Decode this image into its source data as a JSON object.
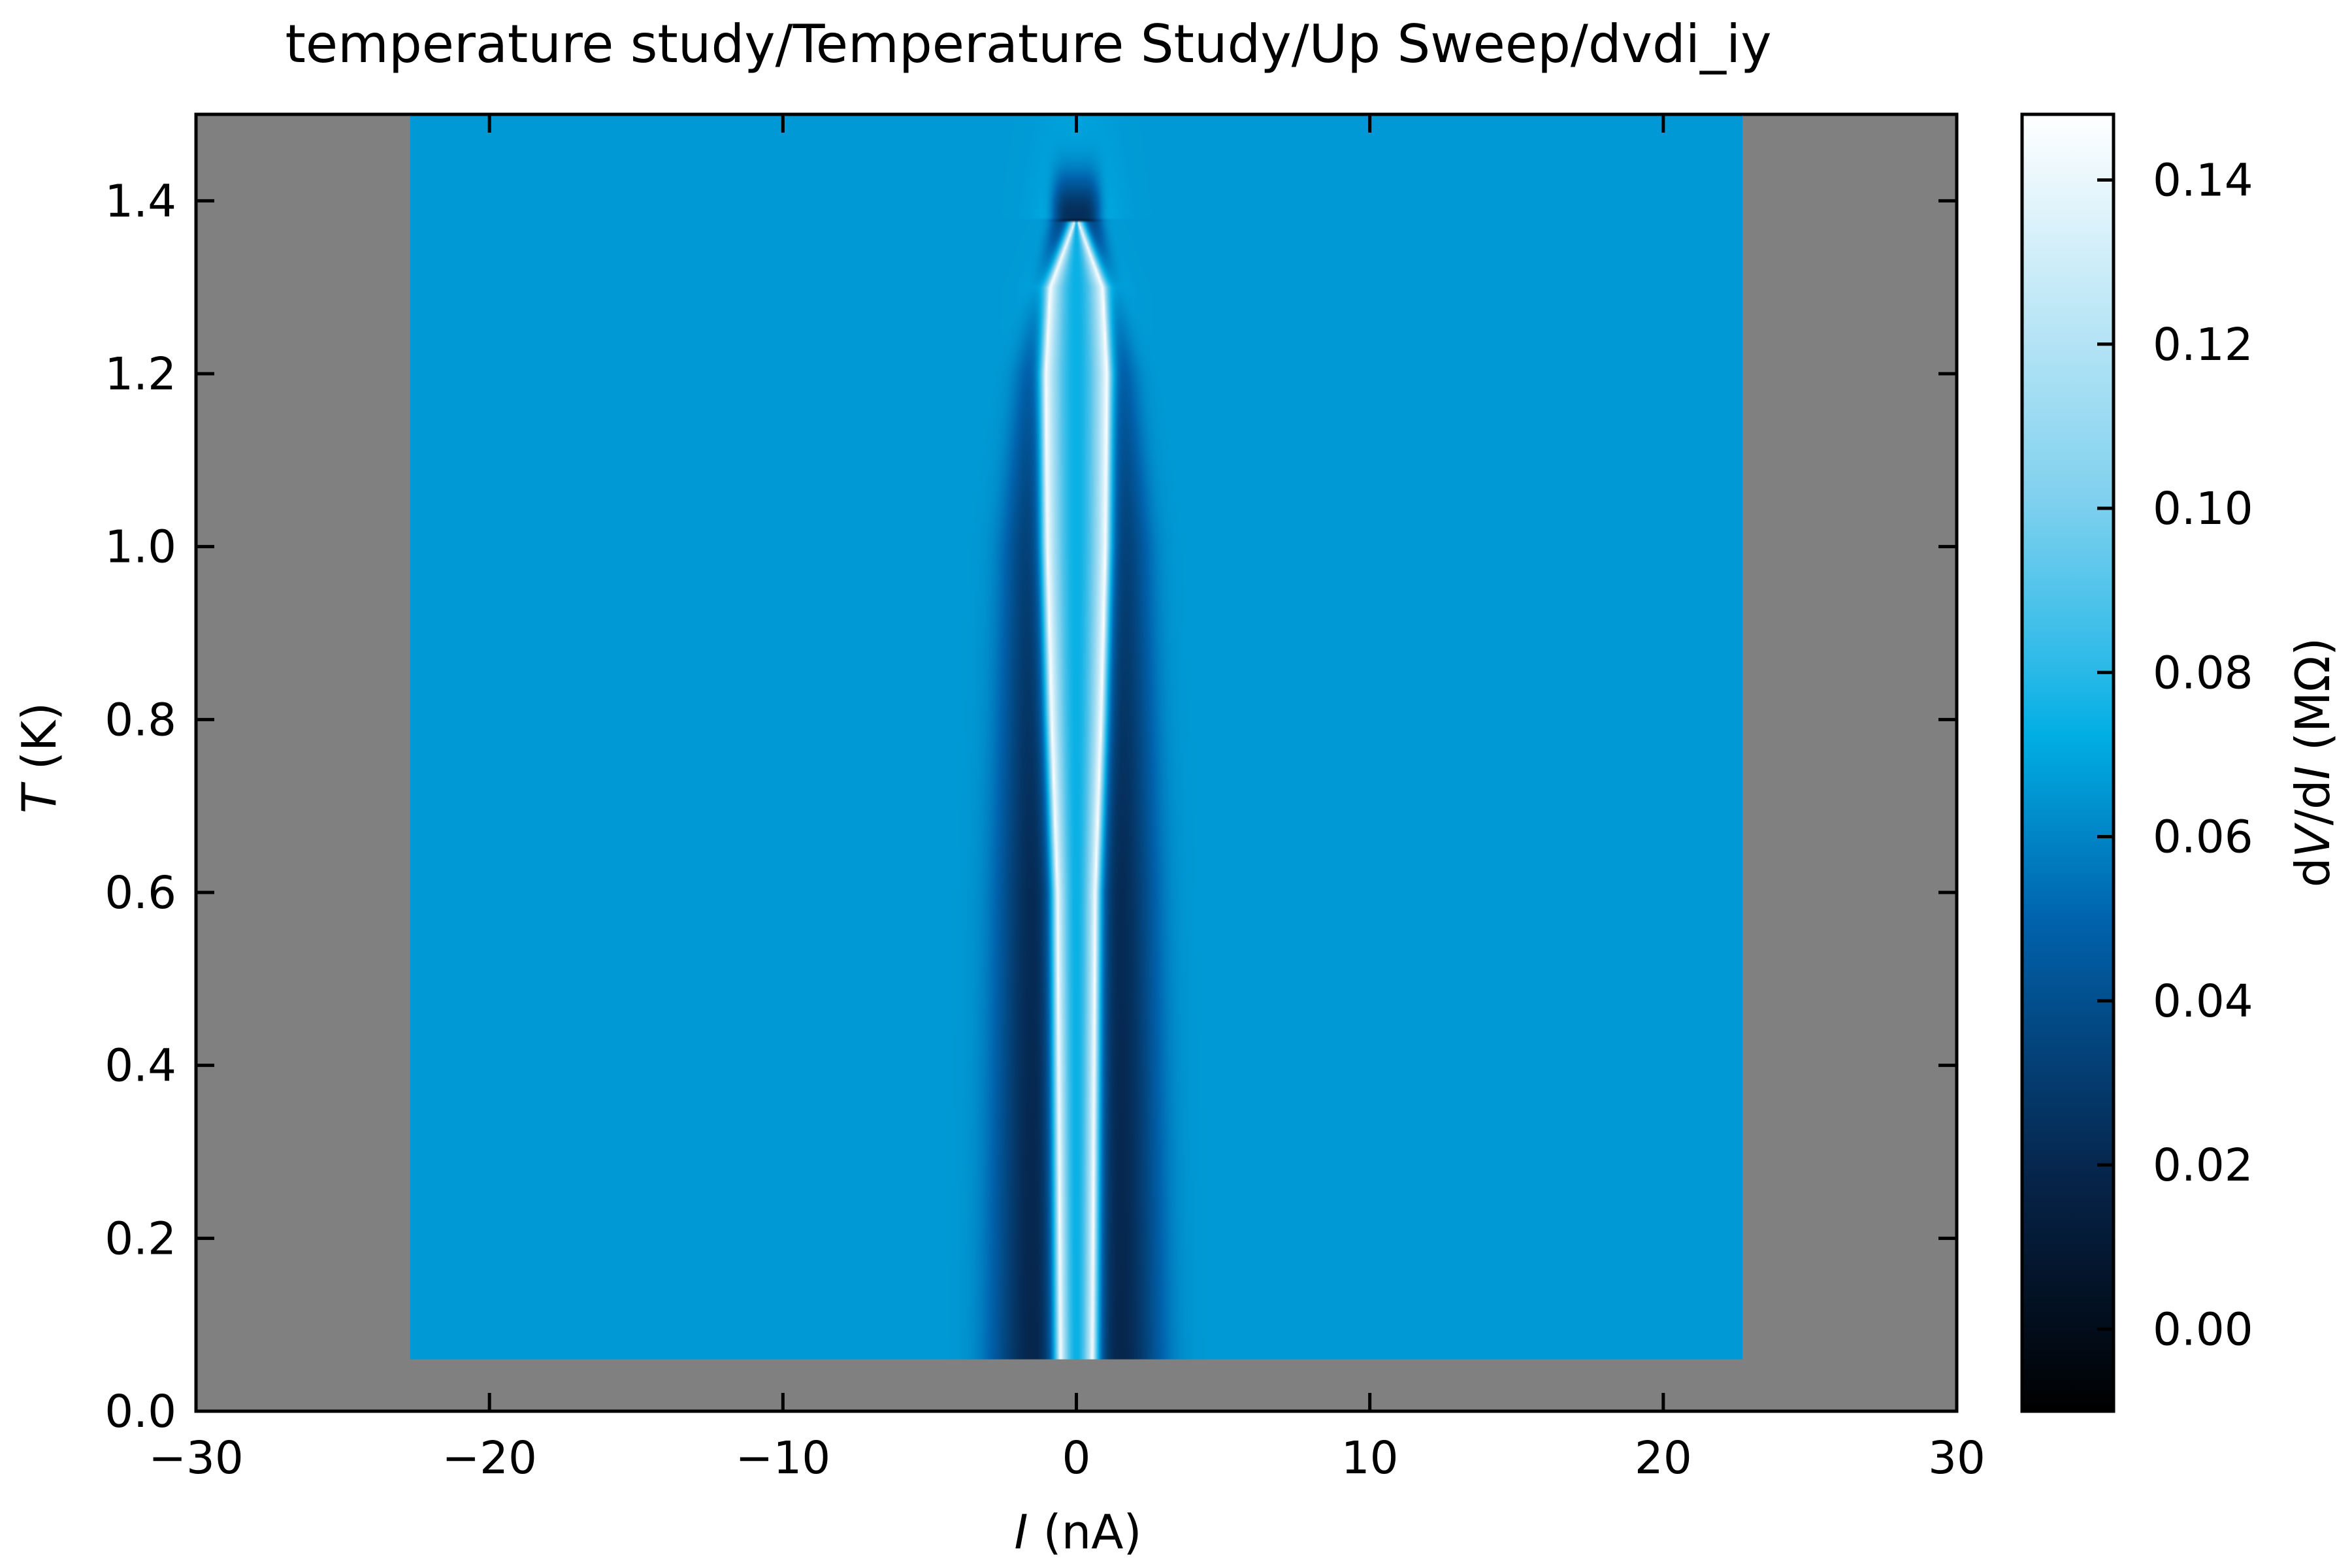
{
  "chart_data": {
    "type": "heatmap",
    "title": "temperature study/Temperature Study/Up Sweep/dvdi_iy",
    "xlabel": {
      "symbol": "I",
      "unit": " (nA)"
    },
    "ylabel": {
      "symbol": "T",
      "unit": " (K)"
    },
    "colorbar_label": {
      "pre": "d",
      "v": "V",
      "mid": "/d",
      "i": "I",
      "unit": " (MΩ)"
    },
    "xlim": [
      -30,
      30
    ],
    "ylim": [
      0.0,
      1.5
    ],
    "xticks": [
      -30,
      -20,
      -10,
      0,
      10,
      20,
      30
    ],
    "xtick_labels": [
      "−30",
      "−20",
      "−10",
      "0",
      "10",
      "20",
      "30"
    ],
    "yticks": [
      0.0,
      0.2,
      0.4,
      0.6,
      0.8,
      1.0,
      1.2,
      1.4
    ],
    "ytick_labels": [
      "0.0",
      "0.2",
      "0.4",
      "0.6",
      "0.8",
      "1.0",
      "1.2",
      "1.4"
    ],
    "clim": [
      -0.01,
      0.148
    ],
    "cticks": [
      0.0,
      0.02,
      0.04,
      0.06,
      0.08,
      0.1,
      0.12,
      0.14
    ],
    "ctick_labels": [
      "0.00",
      "0.02",
      "0.04",
      "0.06",
      "0.08",
      "0.10",
      "0.12",
      "0.14"
    ],
    "colormap": [
      [
        0.0,
        "#000000"
      ],
      [
        0.18,
        "#06244a"
      ],
      [
        0.38,
        "#0063ad"
      ],
      [
        0.52,
        "#00aee4"
      ],
      [
        0.58,
        "#30bbe8"
      ],
      [
        0.7,
        "#7ed0ee"
      ],
      [
        1.0,
        "#ffffff"
      ]
    ],
    "background_color": "#808080",
    "data_extent": {
      "x": [
        -22.7,
        22.7
      ],
      "y": [
        0.06,
        1.5
      ]
    },
    "background_value": 0.066,
    "critical_current": [
      {
        "T": 0.06,
        "Ic": 0.55
      },
      {
        "T": 0.6,
        "Ic": 0.65
      },
      {
        "T": 0.8,
        "Ic": 0.85
      },
      {
        "T": 1.0,
        "Ic": 1.0
      },
      {
        "T": 1.2,
        "Ic": 1.05
      },
      {
        "T": 1.3,
        "Ic": 0.9
      },
      {
        "T": 1.38,
        "Ic": 0.0
      }
    ],
    "dip_width": [
      {
        "T": 0.06,
        "w": 2.8
      },
      {
        "T": 0.6,
        "w": 2.6
      },
      {
        "T": 1.0,
        "w": 2.3
      },
      {
        "T": 1.2,
        "w": 1.8
      },
      {
        "T": 1.38,
        "w": 0.8
      }
    ],
    "dip_min_value": 0.012,
    "peak_value": 0.148
  }
}
